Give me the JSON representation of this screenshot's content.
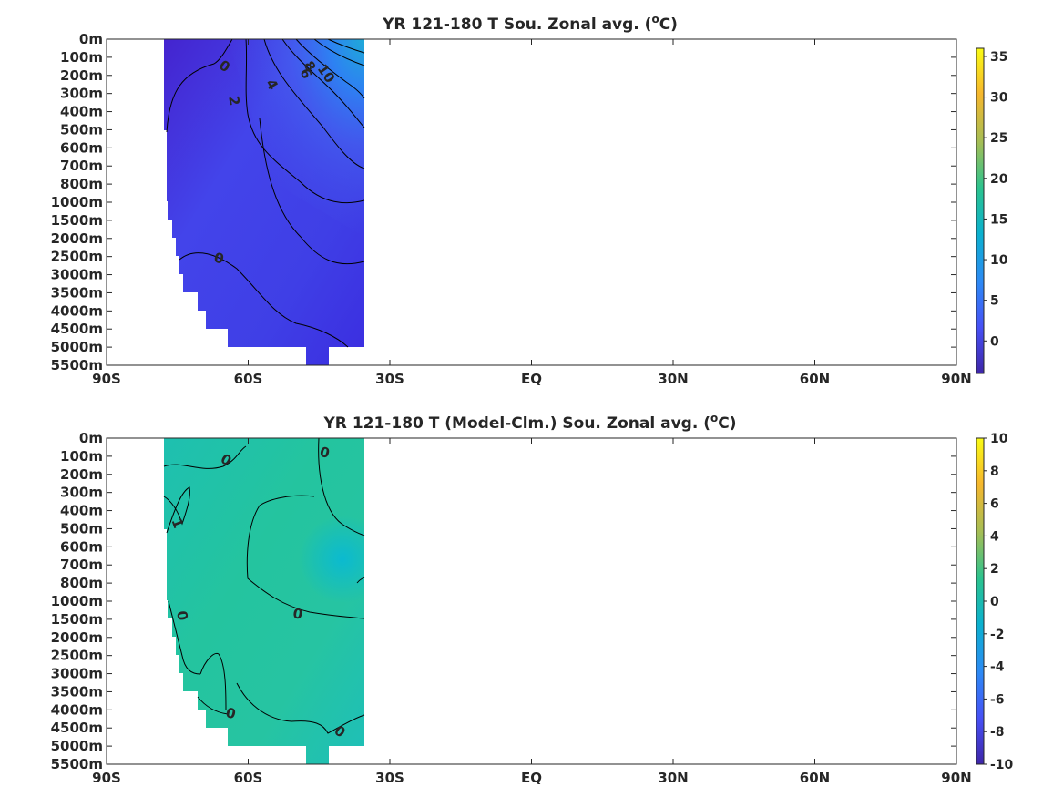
{
  "figure": {
    "background": "#ffffff",
    "colormap": [
      "#3e26a8",
      "#4750f5",
      "#2d89f5",
      "#0bb1cf",
      "#2bc38e",
      "#a4be56",
      "#f6b72d",
      "#f9fb14"
    ]
  },
  "chart_data": [
    {
      "type": "heatmap",
      "title": "YR 121-180 T Sou. Zonal avg. (°C)",
      "title_parts": {
        "prefix": "YR 121-180 T Sou. Zonal avg. (",
        "sup": "o",
        "suffix": "C)"
      },
      "xlabel": "",
      "ylabel": "",
      "x_tick_labels": [
        "90S",
        "60S",
        "30S",
        "EQ",
        "30N",
        "60N",
        "90N"
      ],
      "x_ticks": [
        -90,
        -60,
        -30,
        0,
        30,
        60,
        90
      ],
      "y_tick_labels": [
        "0m",
        "100m",
        "200m",
        "300m",
        "400m",
        "500m",
        "600m",
        "700m",
        "800m",
        "1000m",
        "1500m",
        "2000m",
        "2500m",
        "3000m",
        "3500m",
        "4000m",
        "4500m",
        "5000m",
        "5500m"
      ],
      "colorbar": {
        "range": [
          -4,
          36
        ],
        "ticks": [
          0,
          5,
          10,
          15,
          20,
          25,
          30,
          35
        ],
        "tick_labels": [
          "0",
          "5",
          "10",
          "15",
          "20",
          "25",
          "30",
          "35"
        ]
      },
      "data_extent_lat": [
        -77.5,
        -35
      ],
      "contour_labels": [
        {
          "text": "0",
          "lat": -65,
          "depth_level": 1.5,
          "angle": 30
        },
        {
          "text": "2",
          "lat": -63,
          "depth_level": 3.4,
          "angle": 80
        },
        {
          "text": "4",
          "lat": -55,
          "depth_level": 2.5,
          "angle": 60
        },
        {
          "text": "6",
          "lat": -47.8,
          "depth_level": 1.9,
          "angle": 65
        },
        {
          "text": "8",
          "lat": -47,
          "depth_level": 1.5,
          "angle": 60
        },
        {
          "text": "10",
          "lat": -43.5,
          "depth_level": 1.9,
          "angle": 55
        },
        {
          "text": "0",
          "lat": -66.2,
          "depth_level": 12.1,
          "angle": 15
        }
      ],
      "series": [
        {
          "name": "",
          "points": [
            {
              "lat": -75,
              "depth": "100m",
              "value": -1.5
            },
            {
              "lat": -65,
              "depth": "300m",
              "value": 1.0
            },
            {
              "lat": -55,
              "depth": "100m",
              "value": 4.0
            },
            {
              "lat": -45,
              "depth": "100m",
              "value": 8.0
            },
            {
              "lat": -37,
              "depth": "0m",
              "value": 13.0
            },
            {
              "lat": -70,
              "depth": "2500m",
              "value": -0.2
            },
            {
              "lat": -50,
              "depth": "5000m",
              "value": -0.5
            },
            {
              "lat": -40,
              "depth": "1500m",
              "value": 3.5
            }
          ]
        }
      ]
    },
    {
      "type": "heatmap",
      "title": "YR 121-180 T (Model-Clm.) Sou. Zonal avg. (°C)",
      "title_parts": {
        "prefix": "YR 121-180 T (Model-Clm.) Sou. Zonal avg. (",
        "sup": "o",
        "suffix": "C)"
      },
      "xlabel": "",
      "ylabel": "",
      "x_tick_labels": [
        "90S",
        "60S",
        "30S",
        "EQ",
        "30N",
        "60N",
        "90N"
      ],
      "x_ticks": [
        -90,
        -60,
        -30,
        0,
        30,
        60,
        90
      ],
      "y_tick_labels": [
        "0m",
        "100m",
        "200m",
        "300m",
        "400m",
        "500m",
        "600m",
        "700m",
        "800m",
        "1000m",
        "1500m",
        "2000m",
        "2500m",
        "3000m",
        "3500m",
        "4000m",
        "4500m",
        "5000m",
        "5500m"
      ],
      "colorbar": {
        "range": [
          -10,
          10
        ],
        "ticks": [
          10,
          8,
          6,
          4,
          2,
          0,
          -2,
          -4,
          -6,
          -8,
          -10
        ],
        "tick_labels": [
          "10",
          "8",
          "6",
          "4",
          "2",
          "0",
          "-2",
          "-4",
          "-6",
          "-8",
          "-10"
        ]
      },
      "data_extent_lat": [
        -77.5,
        -35
      ],
      "contour_labels": [
        {
          "text": "0",
          "lat": -64.7,
          "depth_level": 1.2,
          "angle": 30
        },
        {
          "text": "0",
          "lat": -43.8,
          "depth_level": 0.8,
          "angle": 15
        },
        {
          "text": "1",
          "lat": -75,
          "depth_level": 4.7,
          "angle": 70
        },
        {
          "text": "0",
          "lat": -49.5,
          "depth_level": 9.7,
          "angle": 10
        },
        {
          "text": "0",
          "lat": -74,
          "depth_level": 9.8,
          "angle": 80
        },
        {
          "text": "0",
          "lat": -63.7,
          "depth_level": 15.2,
          "angle": 15
        },
        {
          "text": "0",
          "lat": -40.6,
          "depth_level": 16.2,
          "angle": 35
        }
      ],
      "series": [
        {
          "name": "",
          "points": [
            {
              "lat": -75,
              "depth": "400m",
              "value": 1.0
            },
            {
              "lat": -60,
              "depth": "1500m",
              "value": 0.3
            },
            {
              "lat": -45,
              "depth": "700m",
              "value": -0.8
            },
            {
              "lat": -50,
              "depth": "3000m",
              "value": 0.4
            },
            {
              "lat": -70,
              "depth": "4500m",
              "value": 0.2
            }
          ]
        }
      ]
    }
  ]
}
